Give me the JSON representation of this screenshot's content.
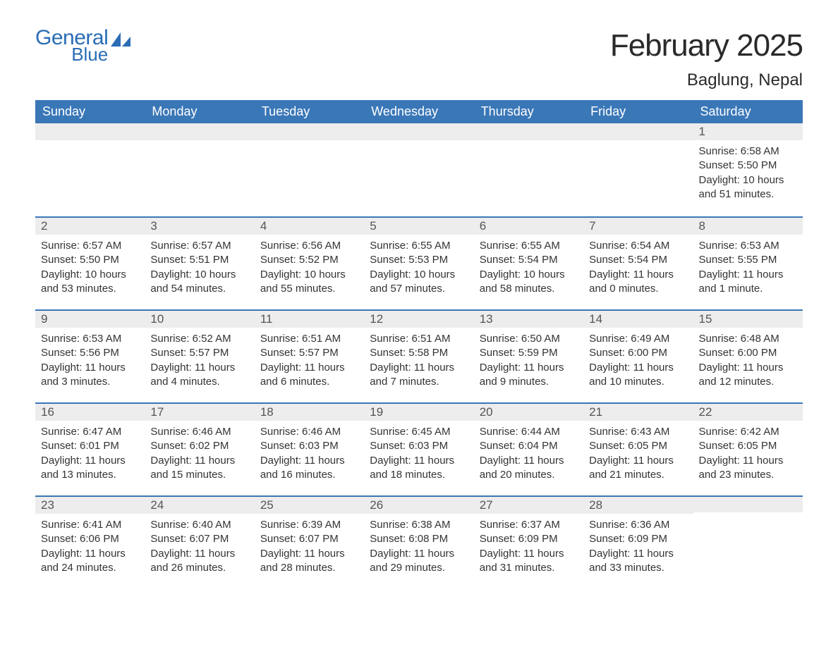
{
  "logo": {
    "general": "General",
    "blue": "Blue",
    "icon_color": "#2a6db5"
  },
  "title": "February 2025",
  "location": "Baglung, Nepal",
  "colors": {
    "header_bg": "#3a77b7",
    "header_text": "#ffffff",
    "daybar_bg": "#ededed",
    "daybar_border": "#3a77b7",
    "body_text": "#333333",
    "title_text": "#2a2a2a",
    "logo_color": "#2a6db5",
    "page_bg": "#ffffff"
  },
  "typography": {
    "title_fontsize_pt": 33,
    "location_fontsize_pt": 18,
    "weekday_fontsize_pt": 14,
    "daynum_fontsize_pt": 13,
    "body_fontsize_pt": 11,
    "font_family": "Arial"
  },
  "weekdays": [
    "Sunday",
    "Monday",
    "Tuesday",
    "Wednesday",
    "Thursday",
    "Friday",
    "Saturday"
  ],
  "labels": {
    "sunrise": "Sunrise:",
    "sunset": "Sunset:",
    "daylight": "Daylight:"
  },
  "weeks": [
    [
      null,
      null,
      null,
      null,
      null,
      null,
      {
        "n": "1",
        "sr": "6:58 AM",
        "ss": "5:50 PM",
        "dl": "10 hours and 51 minutes."
      }
    ],
    [
      {
        "n": "2",
        "sr": "6:57 AM",
        "ss": "5:50 PM",
        "dl": "10 hours and 53 minutes."
      },
      {
        "n": "3",
        "sr": "6:57 AM",
        "ss": "5:51 PM",
        "dl": "10 hours and 54 minutes."
      },
      {
        "n": "4",
        "sr": "6:56 AM",
        "ss": "5:52 PM",
        "dl": "10 hours and 55 minutes."
      },
      {
        "n": "5",
        "sr": "6:55 AM",
        "ss": "5:53 PM",
        "dl": "10 hours and 57 minutes."
      },
      {
        "n": "6",
        "sr": "6:55 AM",
        "ss": "5:54 PM",
        "dl": "10 hours and 58 minutes."
      },
      {
        "n": "7",
        "sr": "6:54 AM",
        "ss": "5:54 PM",
        "dl": "11 hours and 0 minutes."
      },
      {
        "n": "8",
        "sr": "6:53 AM",
        "ss": "5:55 PM",
        "dl": "11 hours and 1 minute."
      }
    ],
    [
      {
        "n": "9",
        "sr": "6:53 AM",
        "ss": "5:56 PM",
        "dl": "11 hours and 3 minutes."
      },
      {
        "n": "10",
        "sr": "6:52 AM",
        "ss": "5:57 PM",
        "dl": "11 hours and 4 minutes."
      },
      {
        "n": "11",
        "sr": "6:51 AM",
        "ss": "5:57 PM",
        "dl": "11 hours and 6 minutes."
      },
      {
        "n": "12",
        "sr": "6:51 AM",
        "ss": "5:58 PM",
        "dl": "11 hours and 7 minutes."
      },
      {
        "n": "13",
        "sr": "6:50 AM",
        "ss": "5:59 PM",
        "dl": "11 hours and 9 minutes."
      },
      {
        "n": "14",
        "sr": "6:49 AM",
        "ss": "6:00 PM",
        "dl": "11 hours and 10 minutes."
      },
      {
        "n": "15",
        "sr": "6:48 AM",
        "ss": "6:00 PM",
        "dl": "11 hours and 12 minutes."
      }
    ],
    [
      {
        "n": "16",
        "sr": "6:47 AM",
        "ss": "6:01 PM",
        "dl": "11 hours and 13 minutes."
      },
      {
        "n": "17",
        "sr": "6:46 AM",
        "ss": "6:02 PM",
        "dl": "11 hours and 15 minutes."
      },
      {
        "n": "18",
        "sr": "6:46 AM",
        "ss": "6:03 PM",
        "dl": "11 hours and 16 minutes."
      },
      {
        "n": "19",
        "sr": "6:45 AM",
        "ss": "6:03 PM",
        "dl": "11 hours and 18 minutes."
      },
      {
        "n": "20",
        "sr": "6:44 AM",
        "ss": "6:04 PM",
        "dl": "11 hours and 20 minutes."
      },
      {
        "n": "21",
        "sr": "6:43 AM",
        "ss": "6:05 PM",
        "dl": "11 hours and 21 minutes."
      },
      {
        "n": "22",
        "sr": "6:42 AM",
        "ss": "6:05 PM",
        "dl": "11 hours and 23 minutes."
      }
    ],
    [
      {
        "n": "23",
        "sr": "6:41 AM",
        "ss": "6:06 PM",
        "dl": "11 hours and 24 minutes."
      },
      {
        "n": "24",
        "sr": "6:40 AM",
        "ss": "6:07 PM",
        "dl": "11 hours and 26 minutes."
      },
      {
        "n": "25",
        "sr": "6:39 AM",
        "ss": "6:07 PM",
        "dl": "11 hours and 28 minutes."
      },
      {
        "n": "26",
        "sr": "6:38 AM",
        "ss": "6:08 PM",
        "dl": "11 hours and 29 minutes."
      },
      {
        "n": "27",
        "sr": "6:37 AM",
        "ss": "6:09 PM",
        "dl": "11 hours and 31 minutes."
      },
      {
        "n": "28",
        "sr": "6:36 AM",
        "ss": "6:09 PM",
        "dl": "11 hours and 33 minutes."
      },
      null
    ]
  ]
}
